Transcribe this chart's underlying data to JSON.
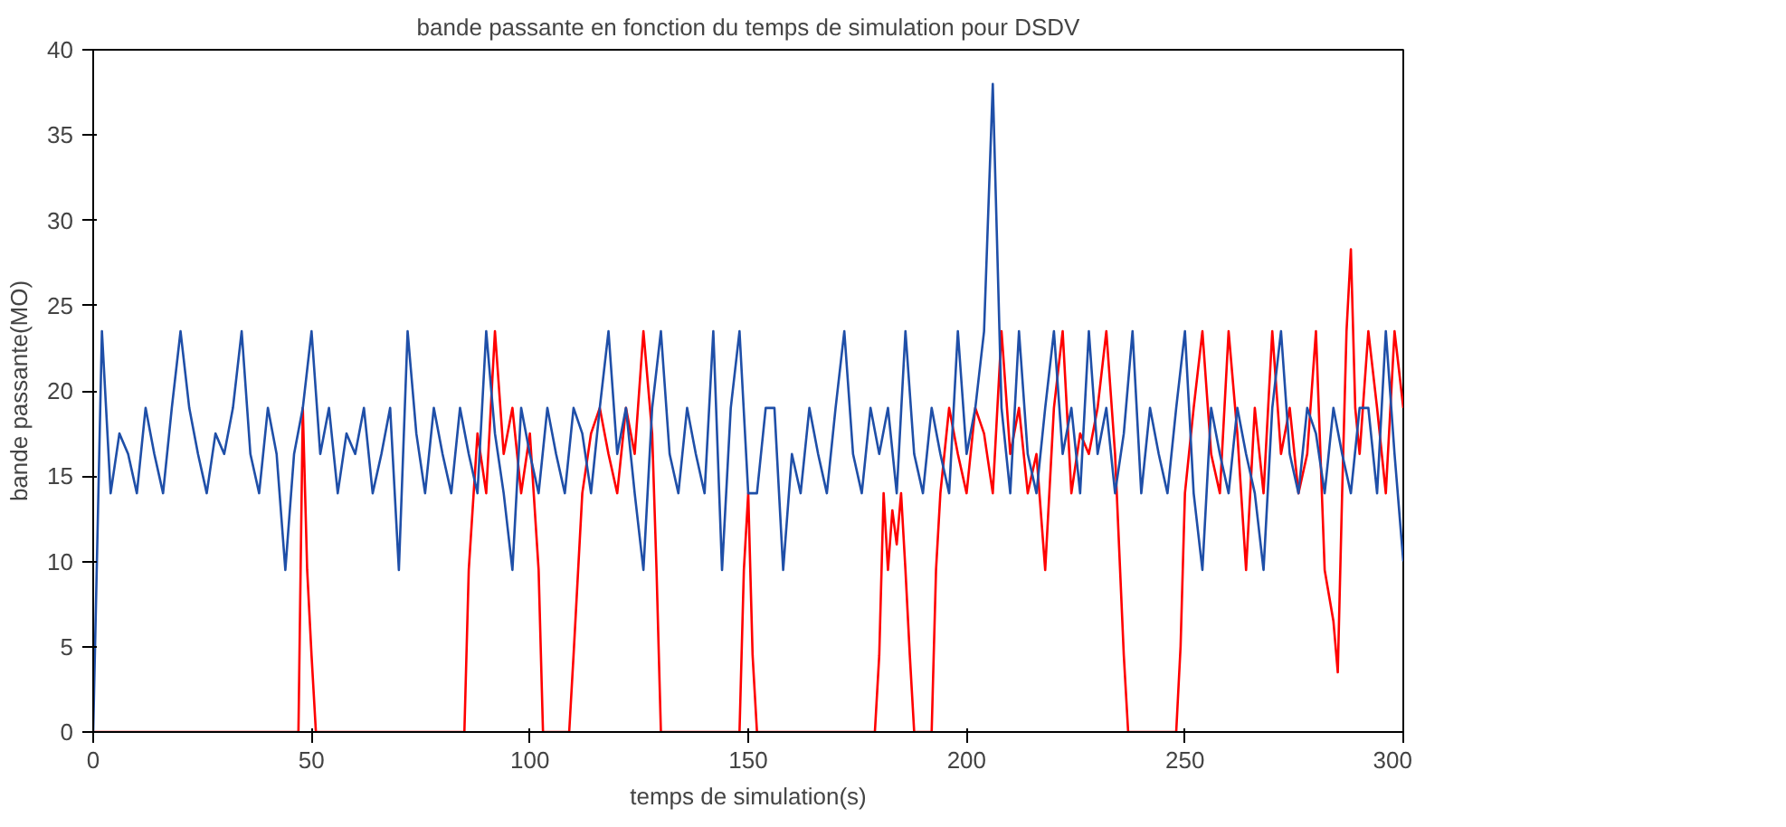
{
  "chart_data": {
    "type": "line",
    "title": "bande passante en fonction du temps de simulation pour DSDV",
    "xlabel": "temps de simulation(s)",
    "ylabel": "bande passante(MO)",
    "xlim": [
      0,
      300
    ],
    "xticks": [
      0,
      50,
      100,
      150,
      200,
      250,
      300
    ],
    "ylim": [
      0,
      40
    ],
    "yticks": [
      0,
      5,
      10,
      15,
      20,
      25,
      30,
      35,
      40
    ],
    "series": [
      {
        "color": "#ff0000",
        "x": [
          0,
          47,
          48,
          49,
          50,
          51,
          85,
          86,
          88,
          90,
          92,
          94,
          96,
          98,
          100,
          102,
          103,
          109,
          110,
          112,
          114,
          116,
          118,
          120,
          122,
          124,
          126,
          128,
          129,
          130,
          148,
          149,
          150,
          151,
          152,
          179,
          180,
          181,
          182,
          183,
          184,
          185,
          186,
          187,
          188,
          192,
          193,
          194,
          196,
          198,
          200,
          202,
          204,
          206,
          208,
          210,
          212,
          214,
          216,
          218,
          220,
          222,
          224,
          226,
          228,
          230,
          232,
          234,
          236,
          237,
          248,
          249,
          250,
          252,
          254,
          256,
          258,
          260,
          262,
          264,
          266,
          268,
          270,
          272,
          274,
          276,
          278,
          280,
          282,
          284,
          285,
          286,
          287,
          288,
          289,
          290,
          292,
          294,
          296,
          298,
          300
        ],
        "values": [
          0,
          0,
          19,
          9.5,
          4.5,
          0,
          0,
          9.5,
          17.5,
          14,
          23.5,
          16.3,
          19,
          14,
          17.5,
          9.5,
          0,
          0,
          4.5,
          14,
          17.5,
          19,
          16.3,
          14,
          19,
          16.3,
          23.5,
          17.5,
          9.5,
          0,
          0,
          9.5,
          14,
          4.5,
          0,
          0,
          4.5,
          14,
          9.5,
          13,
          11,
          14,
          9.5,
          4.5,
          0,
          0,
          9.5,
          14,
          19,
          16.3,
          14,
          19,
          17.5,
          14,
          23.5,
          16.3,
          19,
          14,
          16.3,
          9.5,
          19,
          23.5,
          14,
          17.5,
          16.3,
          19,
          23.5,
          16.3,
          4.5,
          0,
          0,
          5,
          14,
          19,
          23.5,
          16.3,
          14,
          23.5,
          17.5,
          9.5,
          19,
          14,
          23.5,
          16.3,
          19,
          14,
          16.3,
          23.5,
          9.5,
          6.5,
          3.5,
          14,
          23.5,
          28.3,
          19,
          16.3,
          23.5,
          19,
          14,
          23.5,
          19
        ]
      },
      {
        "color": "#1f4fa8",
        "x": [
          0,
          2,
          4,
          6,
          8,
          10,
          12,
          14,
          16,
          18,
          20,
          22,
          24,
          26,
          28,
          30,
          32,
          34,
          36,
          38,
          40,
          42,
          44,
          46,
          48,
          50,
          52,
          54,
          56,
          58,
          60,
          62,
          64,
          66,
          68,
          70,
          72,
          74,
          76,
          78,
          80,
          82,
          84,
          86,
          88,
          90,
          92,
          94,
          96,
          98,
          100,
          102,
          104,
          106,
          108,
          110,
          112,
          114,
          116,
          118,
          120,
          122,
          124,
          126,
          128,
          130,
          132,
          134,
          136,
          138,
          140,
          142,
          144,
          146,
          148,
          150,
          152,
          154,
          156,
          158,
          160,
          162,
          164,
          166,
          168,
          170,
          172,
          174,
          176,
          178,
          180,
          182,
          184,
          186,
          188,
          190,
          192,
          194,
          196,
          198,
          200,
          202,
          204,
          206,
          208,
          210,
          212,
          214,
          216,
          218,
          220,
          222,
          224,
          226,
          228,
          230,
          232,
          234,
          236,
          238,
          240,
          242,
          244,
          246,
          248,
          250,
          252,
          254,
          256,
          258,
          260,
          262,
          264,
          266,
          268,
          270,
          272,
          274,
          276,
          278,
          280,
          282,
          284,
          286,
          288,
          290,
          292,
          294,
          296,
          298,
          300
        ],
        "values": [
          0,
          23.5,
          14,
          17.5,
          16.3,
          14,
          19,
          16.3,
          14,
          19,
          23.5,
          19,
          16.3,
          14,
          17.5,
          16.3,
          19,
          23.5,
          16.3,
          14,
          19,
          16.3,
          9.5,
          16.3,
          19,
          23.5,
          16.3,
          19,
          14,
          17.5,
          16.3,
          19,
          14,
          16.3,
          19,
          9.5,
          23.5,
          17.5,
          14,
          19,
          16.3,
          14,
          19,
          16.3,
          14,
          23.5,
          17.5,
          14,
          9.5,
          19,
          16.3,
          14,
          19,
          16.3,
          14,
          19,
          17.5,
          14,
          19,
          23.5,
          16.3,
          19,
          14,
          9.5,
          19,
          23.5,
          16.3,
          14,
          19,
          16.3,
          14,
          23.5,
          9.5,
          19,
          23.5,
          14,
          14,
          19,
          19,
          9.5,
          16.3,
          14,
          19,
          16.3,
          14,
          19,
          23.5,
          16.3,
          14,
          19,
          16.3,
          19,
          14,
          23.5,
          16.3,
          14,
          19,
          16.3,
          14,
          23.5,
          16.3,
          19,
          23.5,
          38,
          19,
          14,
          23.5,
          16.3,
          14,
          19,
          23.5,
          16.3,
          19,
          14,
          23.5,
          16.3,
          19,
          14,
          17.5,
          23.5,
          14,
          19,
          16.3,
          14,
          19,
          23.5,
          14,
          9.5,
          19,
          16.3,
          14,
          19,
          16.3,
          14,
          9.5,
          19,
          23.5,
          16.3,
          14,
          19,
          17.5,
          14,
          19,
          16.3,
          14,
          19,
          19,
          14,
          23.5,
          16.3,
          10
        ]
      }
    ]
  }
}
